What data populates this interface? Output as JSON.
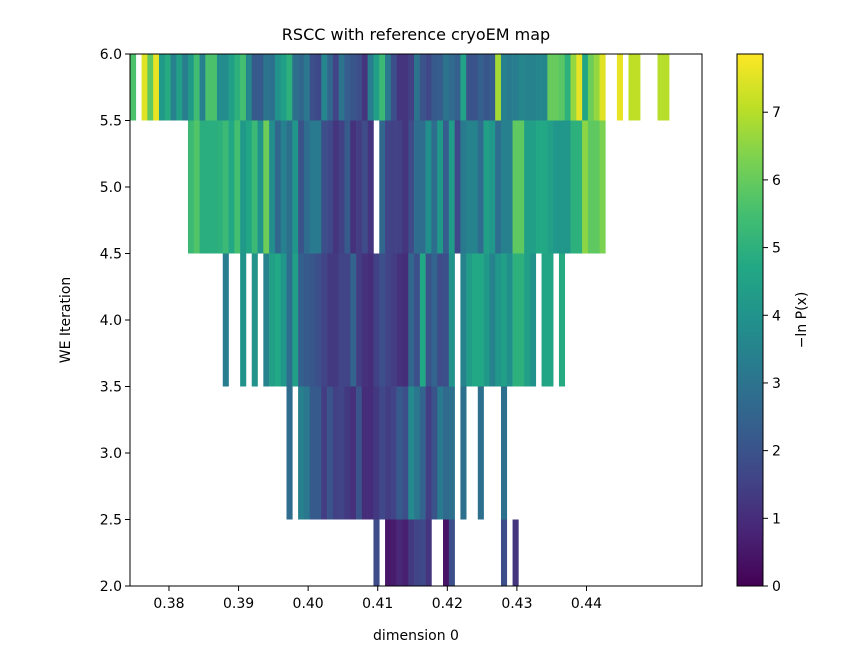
{
  "chart_data": {
    "type": "heatmap",
    "title": "RSCC with reference cryoEM map",
    "xlabel": "dimension 0",
    "ylabel": "WE Iteration",
    "xlim": [
      0.3744,
      0.4566
    ],
    "ylim": [
      2.0,
      6.0
    ],
    "xticks": [
      0.38,
      0.39,
      0.4,
      0.41,
      0.42,
      0.43,
      0.44
    ],
    "xtick_labels": [
      "0.38",
      "0.39",
      "0.40",
      "0.41",
      "0.42",
      "0.43",
      "0.44"
    ],
    "yticks": [
      2.0,
      2.5,
      3.0,
      3.5,
      4.0,
      4.5,
      5.0,
      5.5,
      6.0
    ],
    "ytick_labels": [
      "2.0",
      "2.5",
      "3.0",
      "3.5",
      "4.0",
      "4.5",
      "5.0",
      "5.5",
      "6.0"
    ],
    "colorbar": {
      "label": "−ln P(x)",
      "colormap": "viridis",
      "range": [
        0,
        7.86
      ],
      "ticks": [
        0,
        1,
        2,
        3,
        4,
        5,
        6,
        7
      ],
      "tick_labels": [
        "0",
        "1",
        "2",
        "3",
        "4",
        "5",
        "6",
        "7"
      ]
    },
    "x_bin_start": 0.3744,
    "x_bin_width": 0.000833,
    "rows": [
      {
        "y_range": [
          2.0,
          2.5
        ],
        "values": [
          null,
          null,
          null,
          null,
          null,
          null,
          null,
          null,
          null,
          null,
          null,
          null,
          null,
          null,
          null,
          null,
          null,
          null,
          null,
          null,
          null,
          null,
          null,
          null,
          null,
          null,
          null,
          null,
          null,
          null,
          null,
          null,
          null,
          null,
          null,
          null,
          null,
          null,
          null,
          null,
          null,
          null,
          1.8,
          null,
          0.5,
          0.6,
          0.9,
          0.7,
          1.3,
          1.6,
          1.7,
          1.2,
          null,
          null,
          0.4,
          1.9,
          null,
          null,
          null,
          null,
          null,
          null,
          null,
          null,
          1.9,
          null,
          1.2,
          null,
          null,
          null,
          null,
          null,
          null,
          null,
          null,
          null,
          null,
          null,
          null,
          null,
          null,
          null,
          null,
          null,
          null,
          null,
          null,
          null,
          null,
          null,
          null,
          null,
          null,
          null,
          null,
          null,
          null,
          null,
          null
        ]
      },
      {
        "y_range": [
          2.5,
          3.5
        ],
        "values": [
          null,
          null,
          null,
          null,
          null,
          null,
          null,
          null,
          null,
          null,
          null,
          null,
          null,
          null,
          null,
          null,
          null,
          null,
          null,
          null,
          null,
          null,
          null,
          null,
          null,
          null,
          null,
          2.8,
          null,
          3.4,
          3.1,
          2.2,
          2.2,
          1.4,
          2.0,
          1.5,
          1.6,
          1.3,
          1.1,
          2.0,
          1.0,
          1.0,
          1.3,
          1.7,
          1.4,
          1.6,
          2.2,
          1.9,
          3.7,
          3.1,
          2.5,
          1.4,
          2.0,
          3.2,
          2.7,
          2.9,
          null,
          2.9,
          null,
          null,
          2.9,
          null,
          null,
          null,
          2.9,
          null,
          null,
          null,
          null,
          null,
          null,
          null,
          null,
          null,
          null,
          null,
          null,
          null,
          null,
          null,
          null,
          null,
          null,
          null,
          null,
          null,
          null,
          null,
          null,
          null,
          null,
          null,
          null,
          null,
          null,
          null,
          null,
          null,
          null
        ]
      },
      {
        "y_range": [
          3.5,
          4.5
        ],
        "values": [
          null,
          null,
          null,
          null,
          null,
          null,
          null,
          null,
          null,
          null,
          null,
          null,
          null,
          null,
          null,
          null,
          3.3,
          null,
          null,
          4.0,
          null,
          4.0,
          null,
          3.5,
          4.4,
          4.7,
          4.1,
          2.8,
          4.4,
          2.4,
          2.2,
          2.1,
          1.9,
          1.6,
          1.3,
          1.3,
          1.6,
          1.6,
          2.5,
          1.4,
          1.1,
          1.0,
          1.5,
          1.9,
          1.6,
          1.4,
          1.1,
          1.0,
          2.6,
          1.9,
          4.7,
          2.0,
          2.5,
          1.8,
          1.9,
          4.0,
          null,
          3.5,
          4.3,
          4.7,
          4.7,
          4.2,
          3.5,
          4.1,
          4.4,
          3.9,
          5.0,
          5.0,
          4.4,
          4.0,
          null,
          4.6,
          4.6,
          null,
          4.8,
          null,
          null,
          null,
          null,
          null,
          null,
          null,
          null,
          null,
          null,
          null,
          null,
          null,
          null,
          null,
          null,
          null,
          null,
          null,
          null,
          null,
          null,
          null,
          null
        ]
      },
      {
        "y_range": [
          4.5,
          5.5
        ],
        "values": [
          null,
          null,
          null,
          null,
          null,
          null,
          null,
          null,
          null,
          null,
          5.3,
          5.7,
          4.9,
          4.9,
          4.9,
          5.0,
          5.3,
          4.7,
          5.5,
          4.2,
          4.6,
          5.3,
          4.0,
          6.1,
          3.8,
          2.6,
          3.4,
          2.9,
          4.1,
          2.0,
          2.8,
          3.2,
          3.2,
          1.9,
          1.7,
          1.2,
          1.5,
          2.2,
          1.1,
          1.4,
          1.8,
          1.2,
          null,
          2.6,
          1.6,
          1.5,
          1.5,
          1.2,
          1.8,
          2.8,
          2.8,
          3.9,
          2.8,
          4.2,
          2.3,
          4.3,
          1.7,
          3.2,
          3.5,
          3.5,
          2.8,
          4.4,
          4.1,
          2.8,
          3.4,
          3.4,
          5.9,
          5.9,
          4.4,
          4.4,
          4.7,
          4.7,
          4.4,
          4.1,
          4.1,
          4.1,
          5.0,
          5.0,
          6.5,
          5.9,
          5.9,
          6.3,
          null,
          null,
          null,
          null,
          null,
          null,
          null,
          null,
          null,
          null,
          null,
          null,
          null,
          null,
          null,
          null,
          null
        ]
      },
      {
        "y_range": [
          5.5,
          6.0
        ],
        "values": [
          5.6,
          null,
          7.5,
          5.9,
          7.6,
          4.2,
          4.8,
          3.5,
          4.4,
          3.3,
          4.2,
          5.4,
          3.4,
          5.6,
          5.6,
          3.8,
          3.8,
          4.4,
          5.0,
          5.5,
          3.6,
          2.2,
          2.2,
          3.0,
          2.9,
          4.0,
          4.4,
          5.0,
          2.9,
          2.6,
          3.1,
          1.9,
          1.7,
          3.6,
          2.6,
          1.6,
          3.0,
          2.3,
          2.1,
          1.9,
          1.2,
          3.3,
          4.4,
          5.3,
          3.2,
          1.9,
          1.2,
          1.2,
          1.5,
          3.0,
          2.0,
          1.7,
          2.2,
          2.3,
          3.0,
          2.7,
          2.4,
          4.5,
          2.0,
          2.0,
          2.4,
          2.1,
          2.3,
          6.8,
          3.4,
          3.2,
          3.3,
          3.6,
          3.5,
          3.5,
          3.6,
          3.6,
          6.0,
          6.0,
          5.8,
          5.0,
          6.6,
          7.6,
          4.6,
          6.1,
          6.6,
          7.5,
          null,
          null,
          7.6,
          null,
          7.1,
          7.1,
          null,
          null,
          null,
          7.0,
          7.0,
          null,
          null,
          null,
          null,
          null,
          null
        ]
      }
    ]
  }
}
